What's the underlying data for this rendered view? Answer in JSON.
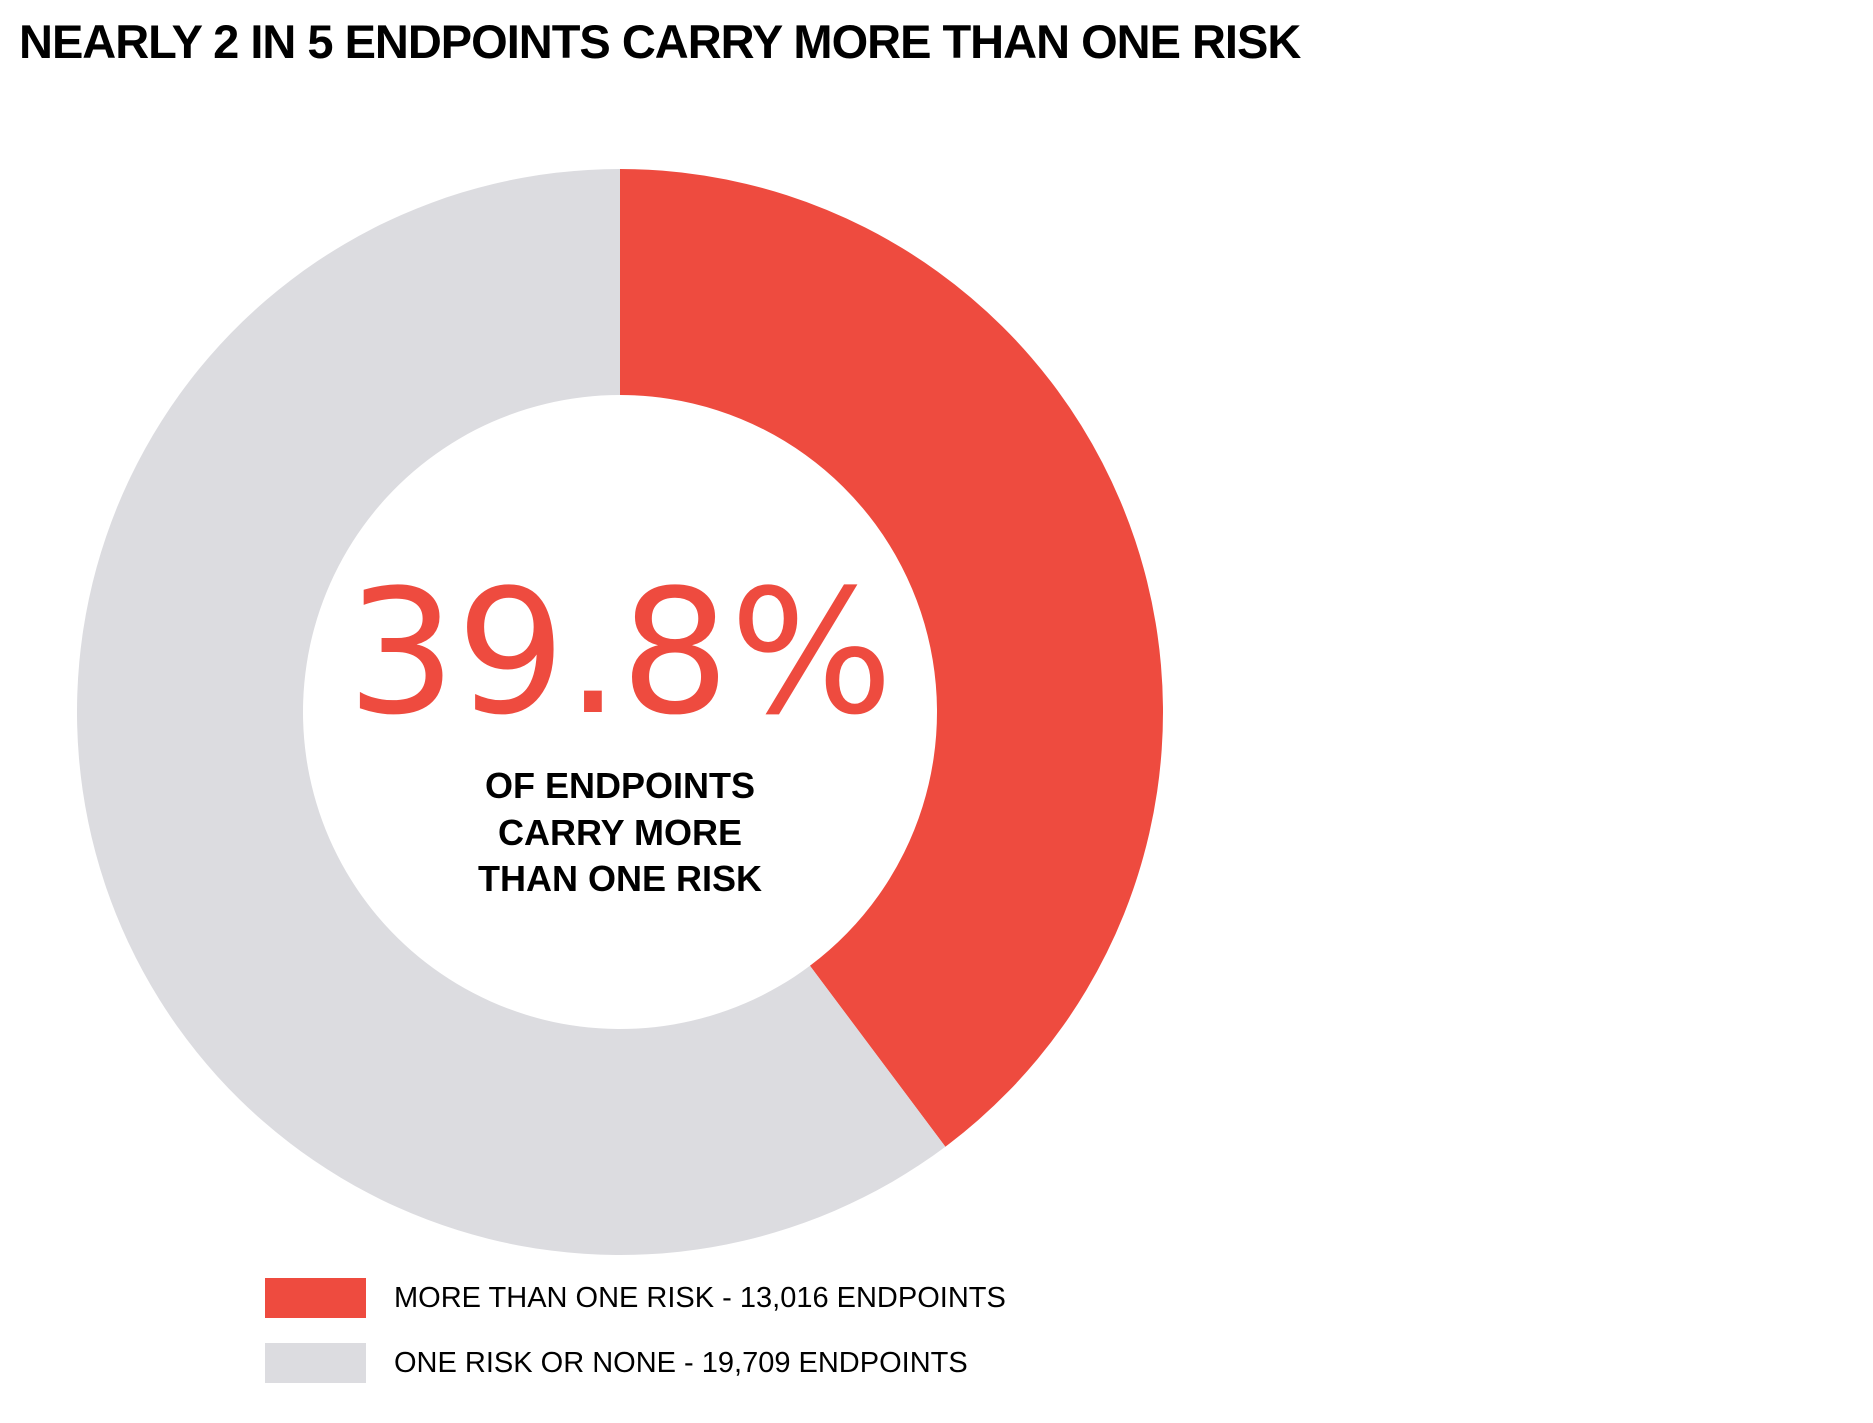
{
  "colors": {
    "accent": "#EE4B3F",
    "neutral": "#DCDCE0"
  },
  "chart_data": {
    "type": "pie",
    "title": "NEARLY 2 IN 5 ENDPOINTS CARRY MORE THAN ONE RISK",
    "categories": [
      "MORE THAN ONE RISK",
      "ONE RISK OR NONE"
    ],
    "values": [
      13016,
      19709
    ],
    "colors": [
      "#EE4B3F",
      "#DCDCE0"
    ],
    "center_value": "39.8%",
    "center_caption": [
      "OF ENDPOINTS",
      "CARRY MORE",
      "THAN ONE RISK"
    ],
    "legend": {
      "placement": "bottom",
      "items": [
        {
          "label": "MORE THAN ONE RISK - 13,016 ENDPOINTS",
          "color": "#EE4B3F"
        },
        {
          "label": "ONE RISK OR NONE - 19,709 ENDPOINTS",
          "color": "#DCDCE0"
        }
      ]
    }
  }
}
